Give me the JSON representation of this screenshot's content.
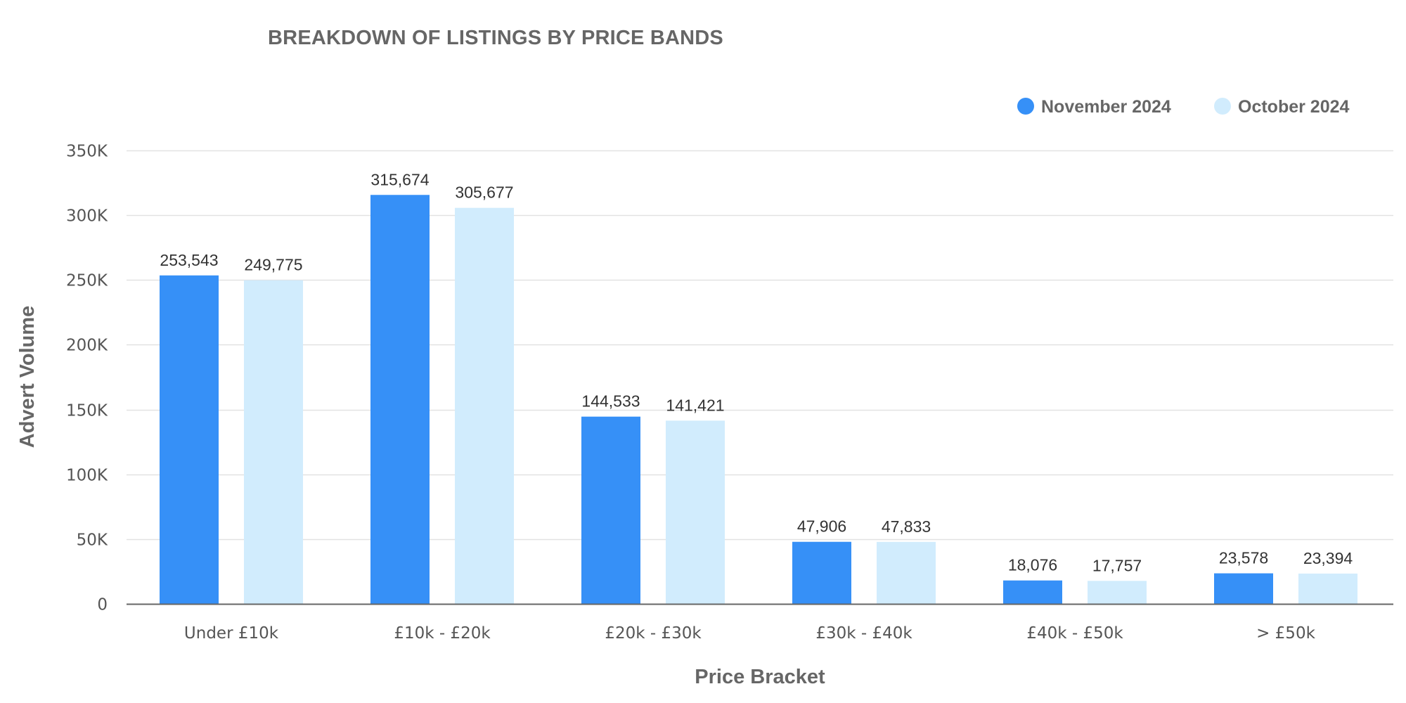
{
  "chart_data": {
    "type": "bar",
    "title": "BREAKDOWN OF LISTINGS BY PRICE BANDS",
    "xlabel": "Price Bracket",
    "ylabel": "Advert Volume",
    "categories": [
      "Under £10k",
      "£10k - £20k",
      "£20k - £30k",
      "£30k - £40k",
      "£40k - £50k",
      "> £50k"
    ],
    "series": [
      {
        "name": "November 2024",
        "color": "#3690f7",
        "values": [
          253543,
          315674,
          144533,
          47906,
          18076,
          23578
        ],
        "labels": [
          "253,543",
          "315,674",
          "144,533",
          "47,906",
          "18,076",
          "23,578"
        ]
      },
      {
        "name": "October 2024",
        "color": "#d1ecfd",
        "values": [
          249775,
          305677,
          141421,
          47833,
          17757,
          23394
        ],
        "labels": [
          "249,775",
          "305,677",
          "141,421",
          "47,833",
          "17,757",
          "23,394"
        ]
      }
    ],
    "ylim": [
      0,
      350000
    ],
    "yticks": [
      0,
      50000,
      100000,
      150000,
      200000,
      250000,
      300000,
      350000
    ],
    "ytick_labels": [
      "0",
      "50K",
      "100K",
      "150K",
      "200K",
      "250K",
      "300K",
      "350K"
    ],
    "grid": true,
    "legend_position": "top-right"
  }
}
